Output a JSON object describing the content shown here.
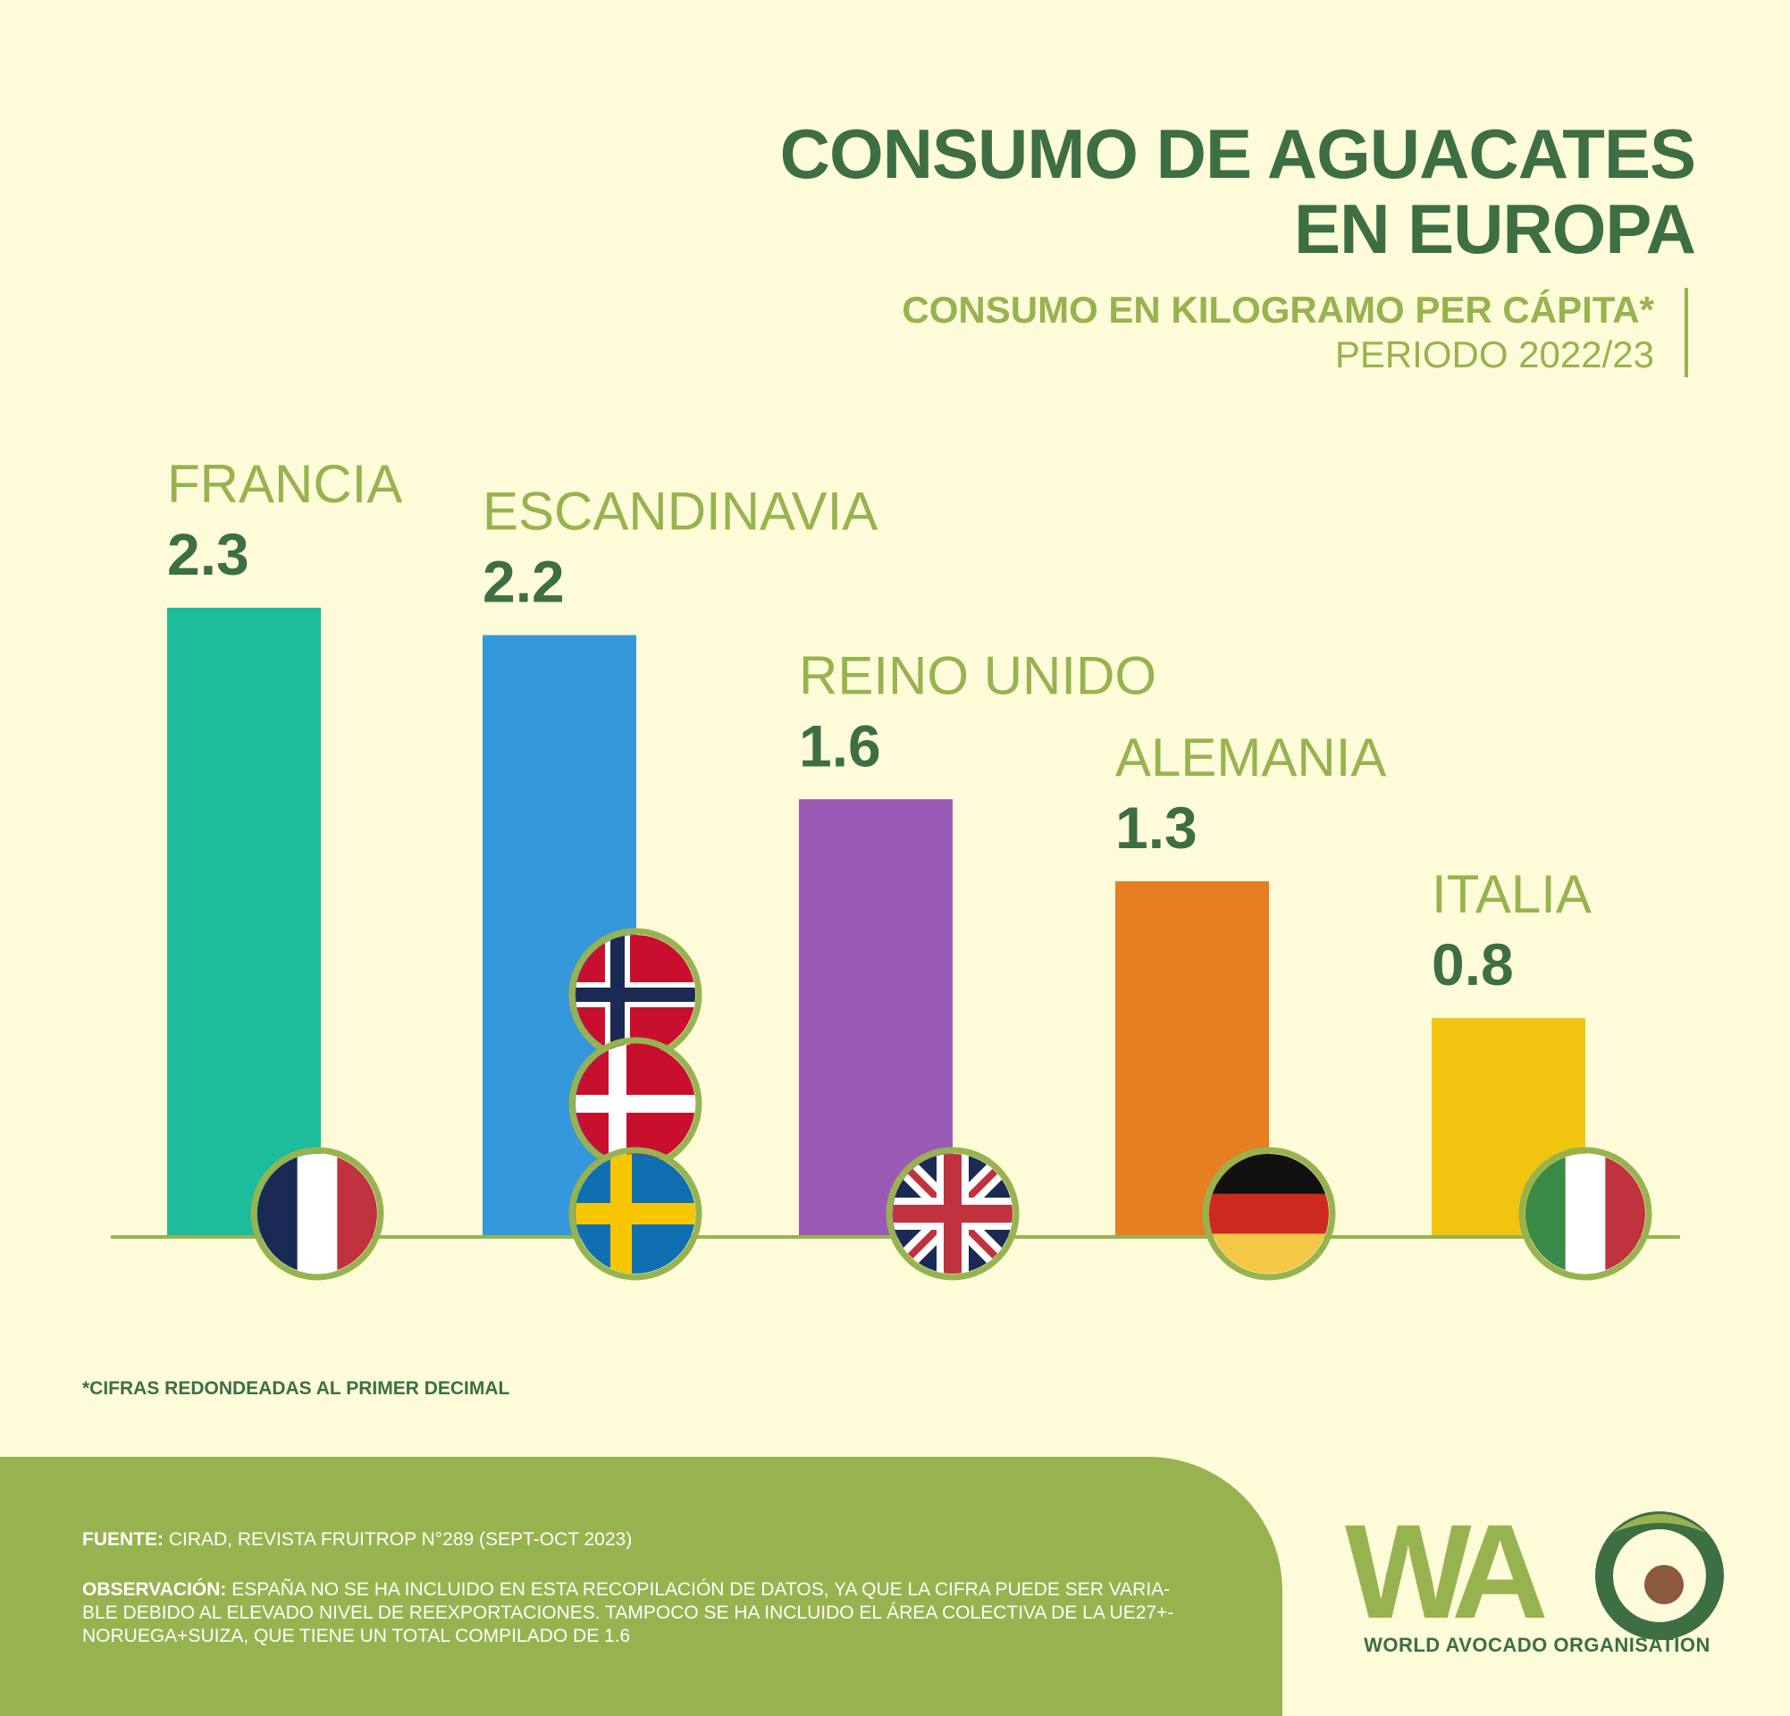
{
  "header": {
    "title_line1": "CONSUMO DE AGUACATES",
    "title_line2": "EN EUROPA",
    "subtitle_line1": "CONSUMO EN KILOGRAMO PER CÁPITA*",
    "subtitle_line2": "PERIODO 2022/23"
  },
  "chart_data": {
    "type": "bar",
    "title": "CONSUMO DE AGUACATES EN EUROPA",
    "subtitle": "CONSUMO EN KILOGRAMO PER CÁPITA* PERIODO 2022/23",
    "categories": [
      "FRANCIA",
      "ESCANDINAVIA",
      "REINO UNIDO",
      "ALEMANIA",
      "ITALIA"
    ],
    "values": [
      2.3,
      2.2,
      1.6,
      1.3,
      0.8
    ],
    "value_labels": [
      "2.3",
      "2.2",
      "1.6",
      "1.3",
      "0.8"
    ],
    "colors": [
      "#1dbc9c",
      "#3498db",
      "#9b59b6",
      "#e67e22",
      "#f1c40f"
    ],
    "flags": [
      [
        "france"
      ],
      [
        "norway",
        "denmark",
        "sweden"
      ],
      [
        "united-kingdom"
      ],
      [
        "germany"
      ],
      [
        "italy"
      ]
    ],
    "ylim": [
      0,
      2.3
    ],
    "grid": false,
    "legend": "none"
  },
  "footnote": "*CIFRAS REDONDEADAS AL PRIMER DECIMAL",
  "footer": {
    "source_label": "FUENTE:",
    "source_text": "CIRAD, REVISTA FRUITROP N°289 (SEPT-OCT 2023)",
    "note_label": "OBSERVACIÓN:",
    "note_line1": "ESPAÑA NO SE HA INCLUIDO EN ESTA RECOPILACIÓN DE DATOS, YA QUE LA CIFRA PUEDE SER VARIA-",
    "note_line2": "BLE DEBIDO AL ELEVADO NIVEL DE REEXPORTACIONES. TAMPOCO SE HA INCLUIDO EL ÁREA COLECTIVA DE LA UE27+-",
    "note_line3": "NORUEGA+SUIZA, QUE TIENE UN TOTAL COMPILADO DE 1.6"
  },
  "logo": {
    "text": "WA",
    "caption": "WORLD AVOCADO ORGANISATION"
  },
  "colors": {
    "background": "#fdfbd8",
    "dark_green": "#3d6e44",
    "light_green": "#97b34f"
  }
}
